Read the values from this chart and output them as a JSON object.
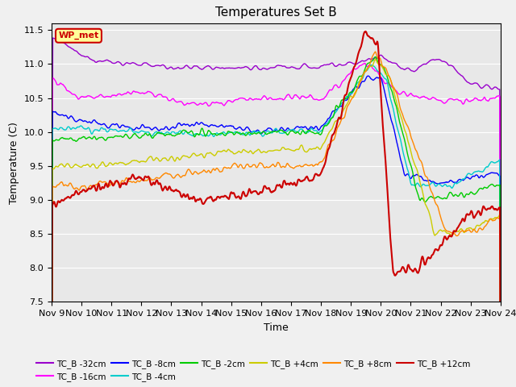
{
  "title": "Temperatures Set B",
  "xlabel": "Time",
  "ylabel": "Temperature (C)",
  "ylim": [
    7.5,
    11.6
  ],
  "yticks": [
    7.5,
    8.0,
    8.5,
    9.0,
    9.5,
    10.0,
    10.5,
    11.0,
    11.5
  ],
  "xtick_labels": [
    "Nov 9",
    "Nov 10",
    "Nov 11",
    "Nov 12",
    "Nov 13",
    "Nov 14",
    "Nov 15",
    "Nov 16",
    "Nov 17",
    "Nov 18",
    "Nov 19",
    "Nov 20",
    "Nov 21",
    "Nov 22",
    "Nov 23",
    "Nov 24"
  ],
  "series_order": [
    "TC_B -32cm",
    "TC_B -16cm",
    "TC_B -8cm",
    "TC_B -4cm",
    "TC_B -2cm",
    "TC_B +4cm",
    "TC_B +8cm",
    "TC_B +12cm"
  ],
  "colors": {
    "TC_B -32cm": "#9900cc",
    "TC_B -16cm": "#ff00ff",
    "TC_B -8cm": "#0000ff",
    "TC_B -4cm": "#00cccc",
    "TC_B -2cm": "#00cc00",
    "TC_B +4cm": "#cccc00",
    "TC_B +8cm": "#ff8800",
    "TC_B +12cm": "#cc0000"
  },
  "wp_met_color": "#cc0000",
  "wp_met_bg": "#ffff99",
  "background_color": "#e8e8e8",
  "grid_color": "#ffffff",
  "title_fontsize": 11,
  "label_fontsize": 9,
  "tick_fontsize": 8
}
